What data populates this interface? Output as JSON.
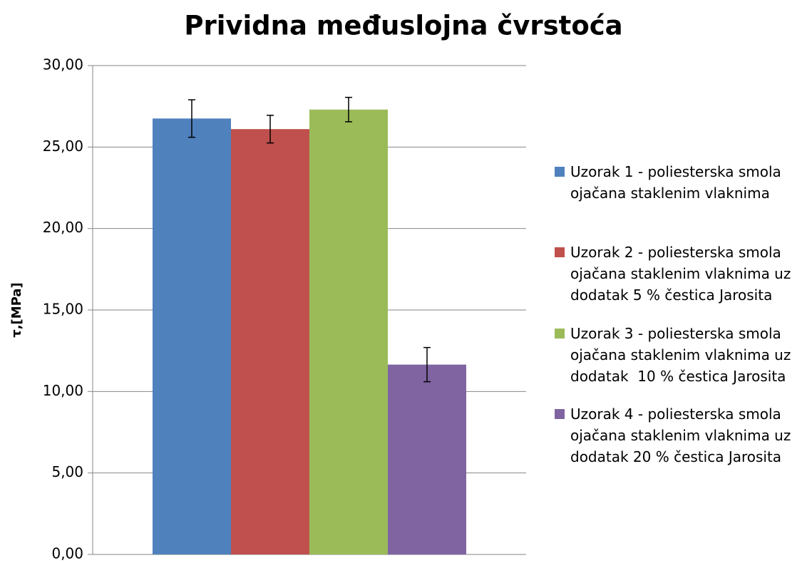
{
  "chart_data": {
    "type": "bar",
    "title": "Prividna međuslojna čvrstoća",
    "y_label": "τ,[MPa]",
    "categories": [
      null
    ],
    "series": [
      {
        "name": "Uzorak 1 - poliesterska smola ojačana staklenim vlaknima",
        "color": "#4f81bd",
        "values": [
          26.75
        ],
        "errors": [
          1.15
        ]
      },
      {
        "name": "Uzorak 2 - poliesterska smola ojačana staklenim vlaknima uz dodatak 5 % čestica Jarosita",
        "color": "#c0504d",
        "values": [
          26.1
        ],
        "errors": [
          0.85
        ]
      },
      {
        "name": "Uzorak 3 - poliesterska smola ojačana staklenim vlaknima uz dodatak  10 % čestica Jarosita",
        "color": "#9bbb59",
        "values": [
          27.3
        ],
        "errors": [
          0.75
        ]
      },
      {
        "name": "Uzorak 4 - poliesterska smola ojačana staklenim vlaknima uz dodatak 20 % čestica Jarosita",
        "color": "#8064a2",
        "values": [
          11.65
        ],
        "errors": [
          1.05
        ]
      }
    ],
    "ylim": [
      0,
      30
    ],
    "yticks": [
      {
        "value": 0,
        "label": "0,00"
      },
      {
        "value": 5,
        "label": "5,00"
      },
      {
        "value": 10,
        "label": "10,00"
      },
      {
        "value": 15,
        "label": "15,00"
      },
      {
        "value": 20,
        "label": "20,00"
      },
      {
        "value": 25,
        "label": "25,00"
      },
      {
        "value": 30,
        "label": "30,00"
      }
    ],
    "grid": true,
    "legend": "right"
  }
}
